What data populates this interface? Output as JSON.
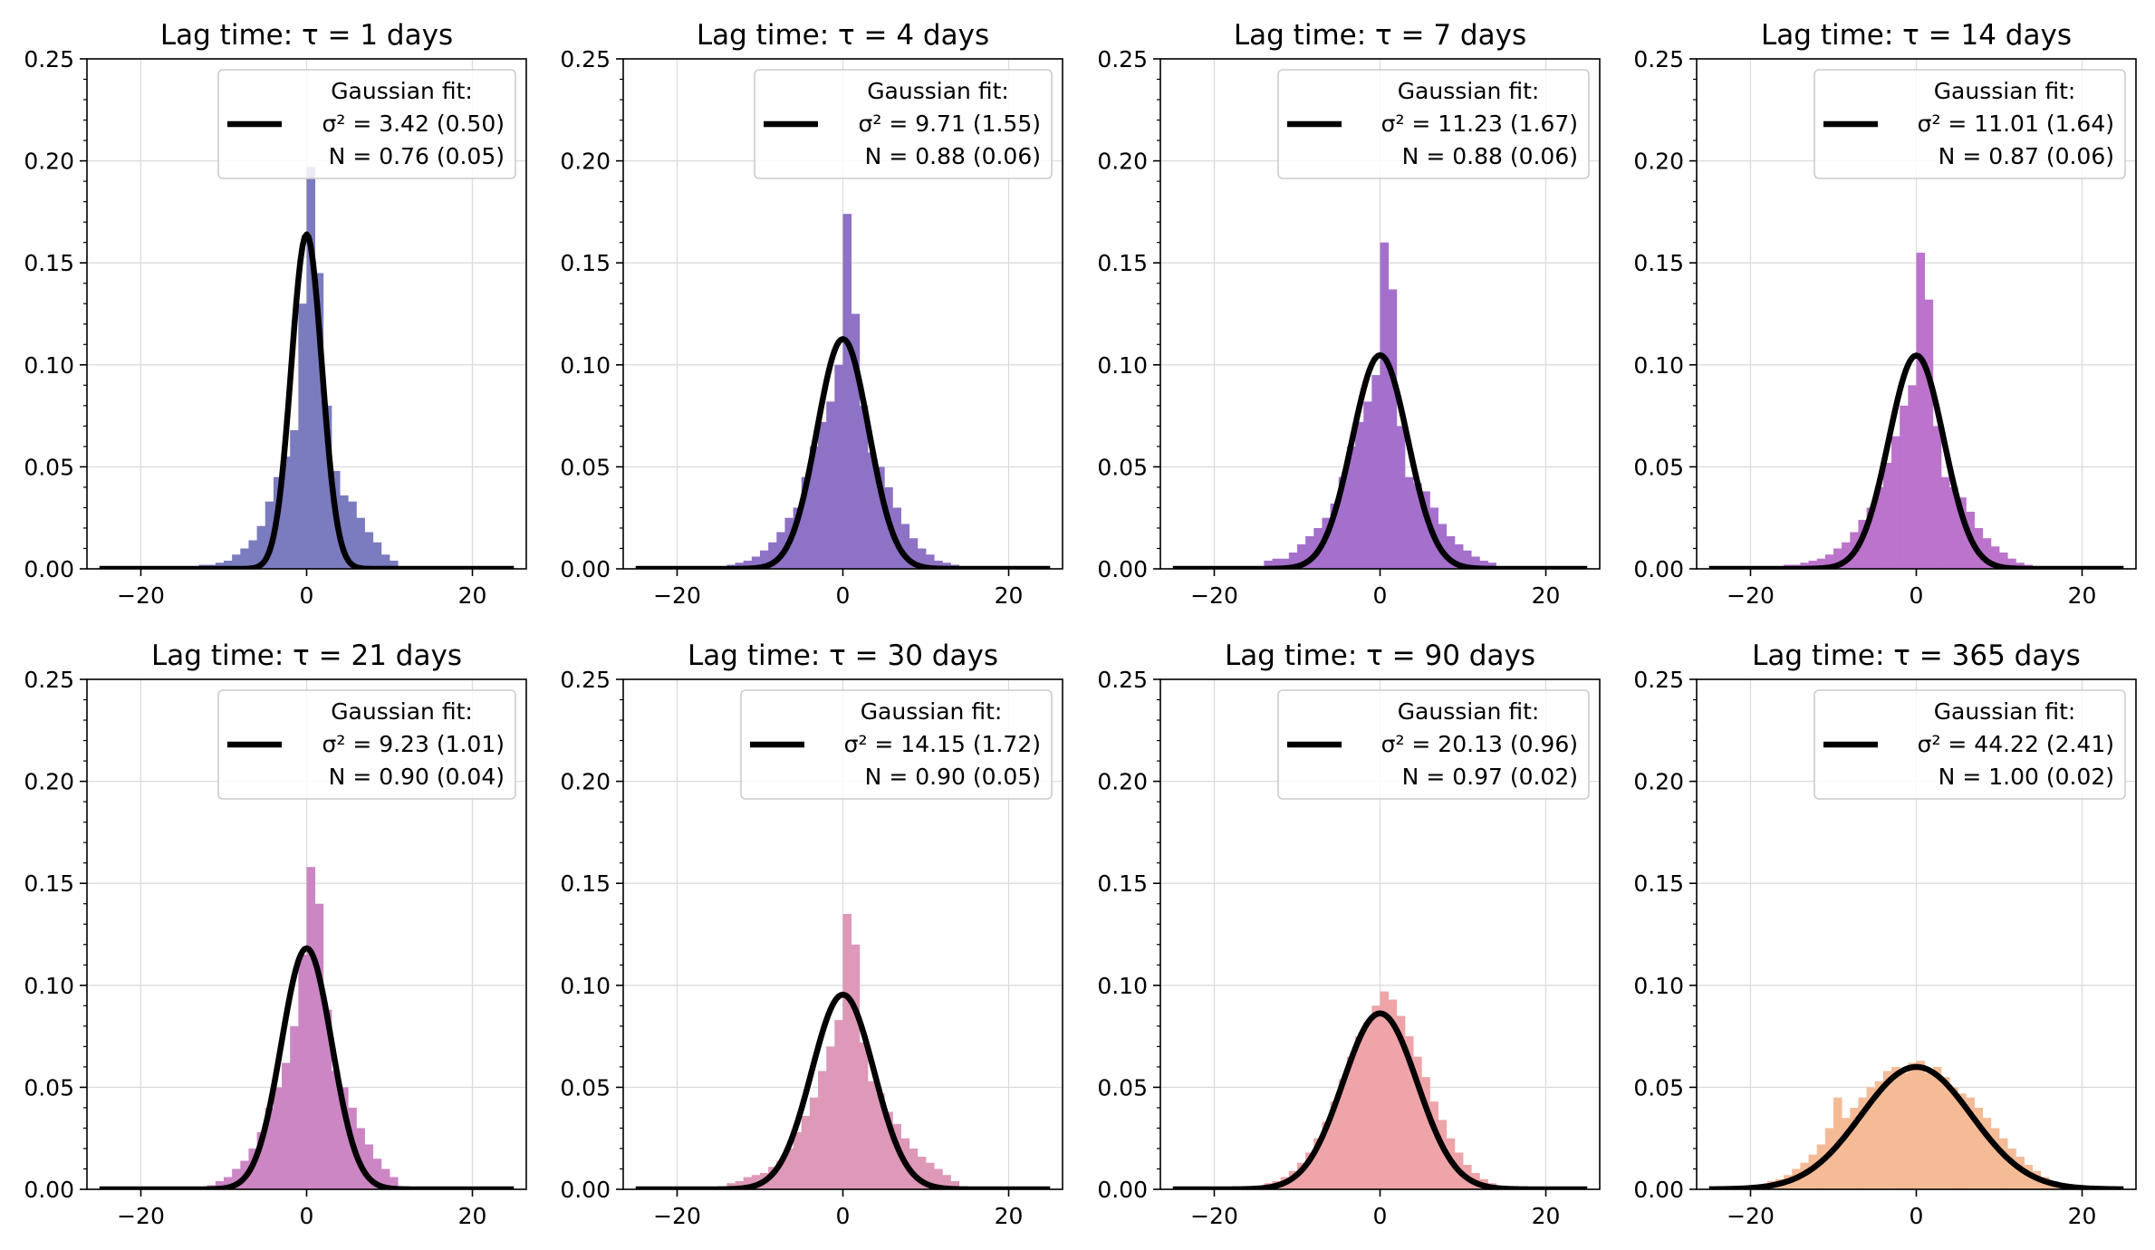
{
  "figure": {
    "legend_heading": "Gaussian fit:",
    "sigma_label": "σ",
    "sigma_exp": "2",
    "n_label": "N",
    "tau_symbol": "τ",
    "title_prefix": "Lag time: ",
    "title_suffix": " days"
  },
  "chart_data": [
    {
      "type": "histogram",
      "title": "Lag time: τ = 1 days",
      "tau_days": 1,
      "color": "#7b7bbf",
      "xlim": [
        -26.5,
        26.5
      ],
      "ylim": [
        0,
        0.25
      ],
      "xticks": [
        -20,
        0,
        20
      ],
      "yticks": [
        0.0,
        0.05,
        0.1,
        0.15,
        0.2,
        0.25
      ],
      "ytick_labels": [
        "0.00",
        "0.05",
        "0.10",
        "0.15",
        "0.20",
        "0.25"
      ],
      "bin_edges": [
        -13,
        -12,
        -11,
        -10,
        -9,
        -8,
        -7,
        -6,
        -5,
        -4,
        -3,
        -2,
        -1,
        0,
        1,
        2,
        3,
        4,
        5,
        6,
        7,
        8,
        9,
        10,
        11
      ],
      "hist_values": [
        0.002,
        0.002,
        0.003,
        0.004,
        0.007,
        0.01,
        0.014,
        0.021,
        0.033,
        0.045,
        0.055,
        0.068,
        0.13,
        0.197,
        0.145,
        0.08,
        0.048,
        0.036,
        0.033,
        0.025,
        0.018,
        0.013,
        0.007,
        0.004
      ],
      "fit": {
        "sigma2": 3.42,
        "sigma2_err": 0.5,
        "N": 0.76,
        "N_err": 0.05
      },
      "legend_sigma": "σ² = 3.42 (0.50)",
      "legend_n": "N = 0.76 (0.05)"
    },
    {
      "type": "histogram",
      "title": "Lag time: τ = 4 days",
      "tau_days": 4,
      "color": "#8e72c5",
      "xlim": [
        -26.5,
        26.5
      ],
      "ylim": [
        0,
        0.25
      ],
      "xticks": [
        -20,
        0,
        20
      ],
      "yticks": [
        0.0,
        0.05,
        0.1,
        0.15,
        0.2,
        0.25
      ],
      "ytick_labels": [
        "0.00",
        "0.05",
        "0.10",
        "0.15",
        "0.20",
        "0.25"
      ],
      "bin_edges": [
        -14,
        -13,
        -12,
        -11,
        -10,
        -9,
        -8,
        -7,
        -6,
        -5,
        -4,
        -3,
        -2,
        -1,
        0,
        1,
        2,
        3,
        4,
        5,
        6,
        7,
        8,
        9,
        10,
        11,
        12,
        13,
        14
      ],
      "hist_values": [
        0.002,
        0.003,
        0.004,
        0.006,
        0.009,
        0.013,
        0.018,
        0.025,
        0.03,
        0.045,
        0.06,
        0.072,
        0.082,
        0.1,
        0.174,
        0.125,
        0.08,
        0.057,
        0.05,
        0.04,
        0.03,
        0.022,
        0.015,
        0.01,
        0.007,
        0.004,
        0.003,
        0.002
      ],
      "fit": {
        "sigma2": 9.71,
        "sigma2_err": 1.55,
        "N": 0.88,
        "N_err": 0.06
      },
      "legend_sigma": "σ² = 9.71 (1.55)",
      "legend_n": "N = 0.88 (0.06)"
    },
    {
      "type": "histogram",
      "title": "Lag time: τ = 7 days",
      "tau_days": 7,
      "color": "#a470cc",
      "xlim": [
        -26.5,
        26.5
      ],
      "ylim": [
        0,
        0.25
      ],
      "xticks": [
        -20,
        0,
        20
      ],
      "yticks": [
        0.0,
        0.05,
        0.1,
        0.15,
        0.2,
        0.25
      ],
      "ytick_labels": [
        "0.00",
        "0.05",
        "0.10",
        "0.15",
        "0.20",
        "0.25"
      ],
      "bin_edges": [
        -14,
        -13,
        -12,
        -11,
        -10,
        -9,
        -8,
        -7,
        -6,
        -5,
        -4,
        -3,
        -2,
        -1,
        0,
        1,
        2,
        3,
        4,
        5,
        6,
        7,
        8,
        9,
        10,
        11,
        12,
        13,
        14
      ],
      "hist_values": [
        0.004,
        0.005,
        0.005,
        0.008,
        0.012,
        0.016,
        0.02,
        0.025,
        0.032,
        0.045,
        0.06,
        0.072,
        0.082,
        0.095,
        0.16,
        0.137,
        0.07,
        0.045,
        0.042,
        0.038,
        0.03,
        0.022,
        0.016,
        0.012,
        0.009,
        0.006,
        0.004,
        0.003
      ],
      "fit": {
        "sigma2": 11.23,
        "sigma2_err": 1.67,
        "N": 0.88,
        "N_err": 0.06
      },
      "legend_sigma": "σ² = 11.23 (1.67)",
      "legend_n": "N = 0.88 (0.06)"
    },
    {
      "type": "histogram",
      "title": "Lag time: τ = 14 days",
      "tau_days": 14,
      "color": "#bb73cc",
      "xlim": [
        -26.5,
        26.5
      ],
      "ylim": [
        0,
        0.25
      ],
      "xticks": [
        -20,
        0,
        20
      ],
      "yticks": [
        0.0,
        0.05,
        0.1,
        0.15,
        0.2,
        0.25
      ],
      "ytick_labels": [
        "0.00",
        "0.05",
        "0.10",
        "0.15",
        "0.20",
        "0.25"
      ],
      "bin_edges": [
        -16,
        -15,
        -14,
        -13,
        -12,
        -11,
        -10,
        -9,
        -8,
        -7,
        -6,
        -5,
        -4,
        -3,
        -2,
        -1,
        0,
        1,
        2,
        3,
        4,
        5,
        6,
        7,
        8,
        9,
        10,
        11,
        12,
        13,
        14
      ],
      "hist_values": [
        0.002,
        0.002,
        0.003,
        0.004,
        0.005,
        0.007,
        0.01,
        0.013,
        0.018,
        0.024,
        0.03,
        0.04,
        0.052,
        0.065,
        0.08,
        0.09,
        0.155,
        0.132,
        0.07,
        0.045,
        0.04,
        0.035,
        0.028,
        0.02,
        0.015,
        0.011,
        0.008,
        0.005,
        0.003,
        0.002
      ],
      "fit": {
        "sigma2": 11.01,
        "sigma2_err": 1.64,
        "N": 0.87,
        "N_err": 0.06
      },
      "legend_sigma": "σ² = 11.01 (1.64)",
      "legend_n": "N = 0.87 (0.06)"
    },
    {
      "type": "histogram",
      "title": "Lag time: τ = 21 days",
      "tau_days": 21,
      "color": "#cc86c4",
      "xlim": [
        -26.5,
        26.5
      ],
      "ylim": [
        0,
        0.25
      ],
      "xticks": [
        -20,
        0,
        20
      ],
      "yticks": [
        0.0,
        0.05,
        0.1,
        0.15,
        0.2,
        0.25
      ],
      "ytick_labels": [
        "0.00",
        "0.05",
        "0.10",
        "0.15",
        "0.20",
        "0.25"
      ],
      "bin_edges": [
        -12,
        -11,
        -10,
        -9,
        -8,
        -7,
        -6,
        -5,
        -4,
        -3,
        -2,
        -1,
        0,
        1,
        2,
        3,
        4,
        5,
        6,
        7,
        8,
        9,
        10,
        11
      ],
      "hist_values": [
        0.002,
        0.004,
        0.006,
        0.01,
        0.014,
        0.02,
        0.028,
        0.04,
        0.05,
        0.062,
        0.08,
        0.115,
        0.158,
        0.14,
        0.088,
        0.058,
        0.05,
        0.04,
        0.03,
        0.022,
        0.015,
        0.01,
        0.006
      ],
      "fit": {
        "sigma2": 9.23,
        "sigma2_err": 1.01,
        "N": 0.9,
        "N_err": 0.04
      },
      "legend_sigma": "σ² = 9.23 (1.01)",
      "legend_n": "N = 0.90 (0.04)"
    },
    {
      "type": "histogram",
      "title": "Lag time: τ = 30 days",
      "tau_days": 30,
      "color": "#de98b8",
      "xlim": [
        -26.5,
        26.5
      ],
      "ylim": [
        0,
        0.25
      ],
      "xticks": [
        -20,
        0,
        20
      ],
      "yticks": [
        0.0,
        0.05,
        0.1,
        0.15,
        0.2,
        0.25
      ],
      "ytick_labels": [
        "0.00",
        "0.05",
        "0.10",
        "0.15",
        "0.20",
        "0.25"
      ],
      "bin_edges": [
        -14,
        -13,
        -12,
        -11,
        -10,
        -9,
        -8,
        -7,
        -6,
        -5,
        -4,
        -3,
        -2,
        -1,
        0,
        1,
        2,
        3,
        4,
        5,
        6,
        7,
        8,
        9,
        10,
        11,
        12,
        13,
        14
      ],
      "hist_values": [
        0.003,
        0.004,
        0.006,
        0.007,
        0.008,
        0.011,
        0.014,
        0.02,
        0.028,
        0.036,
        0.045,
        0.058,
        0.07,
        0.083,
        0.135,
        0.12,
        0.072,
        0.053,
        0.047,
        0.038,
        0.032,
        0.025,
        0.02,
        0.016,
        0.013,
        0.01,
        0.007,
        0.004
      ],
      "fit": {
        "sigma2": 14.15,
        "sigma2_err": 1.72,
        "N": 0.9,
        "N_err": 0.05
      },
      "legend_sigma": "σ² = 14.15 (1.72)",
      "legend_n": "N = 0.90 (0.05)"
    },
    {
      "type": "histogram",
      "title": "Lag time: τ = 90 days",
      "tau_days": 90,
      "color": "#eea4a8",
      "xlim": [
        -26.5,
        26.5
      ],
      "ylim": [
        0,
        0.25
      ],
      "xticks": [
        -20,
        0,
        20
      ],
      "yticks": [
        0.0,
        0.05,
        0.1,
        0.15,
        0.2,
        0.25
      ],
      "ytick_labels": [
        "0.00",
        "0.05",
        "0.10",
        "0.15",
        "0.20",
        "0.25"
      ],
      "bin_edges": [
        -14,
        -13,
        -12,
        -11,
        -10,
        -9,
        -8,
        -7,
        -6,
        -5,
        -4,
        -3,
        -2,
        -1,
        0,
        1,
        2,
        3,
        4,
        5,
        6,
        7,
        8,
        9,
        10,
        11,
        12,
        13,
        14
      ],
      "hist_values": [
        0.003,
        0.004,
        0.006,
        0.009,
        0.013,
        0.018,
        0.025,
        0.033,
        0.043,
        0.054,
        0.065,
        0.075,
        0.082,
        0.09,
        0.097,
        0.093,
        0.085,
        0.075,
        0.065,
        0.055,
        0.043,
        0.034,
        0.025,
        0.018,
        0.012,
        0.008,
        0.005,
        0.003
      ],
      "fit": {
        "sigma2": 20.13,
        "sigma2_err": 0.96,
        "N": 0.97,
        "N_err": 0.02
      },
      "legend_sigma": "σ² = 20.13 (0.96)",
      "legend_n": "N = 0.97 (0.02)"
    },
    {
      "type": "histogram",
      "title": "Lag time: τ = 365 days",
      "tau_days": 365,
      "color": "#f5bb97",
      "xlim": [
        -26.5,
        26.5
      ],
      "ylim": [
        0,
        0.25
      ],
      "xticks": [
        -20,
        0,
        20
      ],
      "yticks": [
        0.0,
        0.05,
        0.1,
        0.15,
        0.2,
        0.25
      ],
      "ytick_labels": [
        "0.00",
        "0.05",
        "0.10",
        "0.15",
        "0.20",
        "0.25"
      ],
      "bin_edges": [
        -18,
        -17,
        -16,
        -15,
        -14,
        -13,
        -12,
        -11,
        -10,
        -9,
        -8,
        -7,
        -6,
        -5,
        -4,
        -3,
        -2,
        -1,
        0,
        1,
        2,
        3,
        4,
        5,
        6,
        7,
        8,
        9,
        10,
        11,
        12,
        13,
        14,
        15,
        16,
        17,
        18
      ],
      "hist_values": [
        0.004,
        0.005,
        0.007,
        0.01,
        0.013,
        0.017,
        0.022,
        0.03,
        0.045,
        0.035,
        0.04,
        0.045,
        0.05,
        0.053,
        0.058,
        0.06,
        0.057,
        0.062,
        0.063,
        0.057,
        0.06,
        0.055,
        0.05,
        0.047,
        0.045,
        0.04,
        0.035,
        0.03,
        0.025,
        0.02,
        0.016,
        0.012,
        0.009,
        0.006,
        0.004,
        0.003
      ],
      "fit": {
        "sigma2": 44.22,
        "sigma2_err": 2.41,
        "N": 1.0,
        "N_err": 0.02
      },
      "legend_sigma": "σ² = 44.22 (2.41)",
      "legend_n": "N = 1.00 (0.02)"
    }
  ]
}
